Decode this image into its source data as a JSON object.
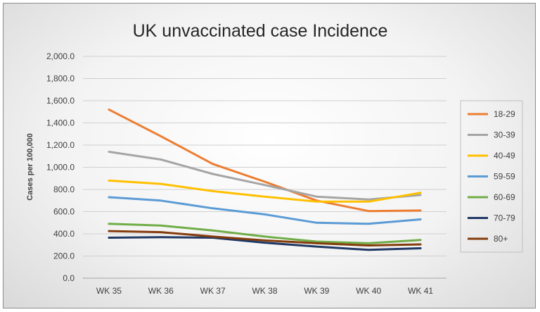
{
  "chart_data": {
    "type": "line",
    "title": "UK unvaccinated case Incidence",
    "xlabel": "",
    "ylabel": "Cases per 100,000",
    "categories": [
      "WK 35",
      "WK 36",
      "WK 37",
      "WK 38",
      "WK 39",
      "WK 40",
      "WK 41"
    ],
    "ylim": [
      0,
      2000
    ],
    "yticks": [
      "0.0",
      "200.0",
      "400.0",
      "600.0",
      "800.0",
      "1,000.0",
      "1,200.0",
      "1,400.0",
      "1,600.0",
      "1,800.0",
      "2,000.0"
    ],
    "grid": true,
    "legend_position": "right",
    "series": [
      {
        "name": "18-29",
        "color": "#ed7d31",
        "values": [
          1520,
          1280,
          1030,
          870,
          700,
          605,
          610
        ]
      },
      {
        "name": "30-39",
        "color": "#a5a5a5",
        "values": [
          1140,
          1070,
          940,
          840,
          735,
          710,
          750
        ]
      },
      {
        "name": "40-49",
        "color": "#ffc000",
        "values": [
          880,
          850,
          785,
          735,
          690,
          690,
          770
        ]
      },
      {
        "name": "59-59",
        "color": "#5b9bd5",
        "values": [
          730,
          700,
          630,
          575,
          500,
          490,
          530
        ]
      },
      {
        "name": "60-69",
        "color": "#70ad47",
        "values": [
          490,
          475,
          430,
          375,
          330,
          315,
          345
        ]
      },
      {
        "name": "70-79",
        "color": "#203864",
        "values": [
          365,
          370,
          365,
          320,
          285,
          255,
          270
        ]
      },
      {
        "name": "80+",
        "color": "#843c0c",
        "values": [
          425,
          415,
          375,
          340,
          315,
          295,
          305
        ]
      }
    ]
  }
}
